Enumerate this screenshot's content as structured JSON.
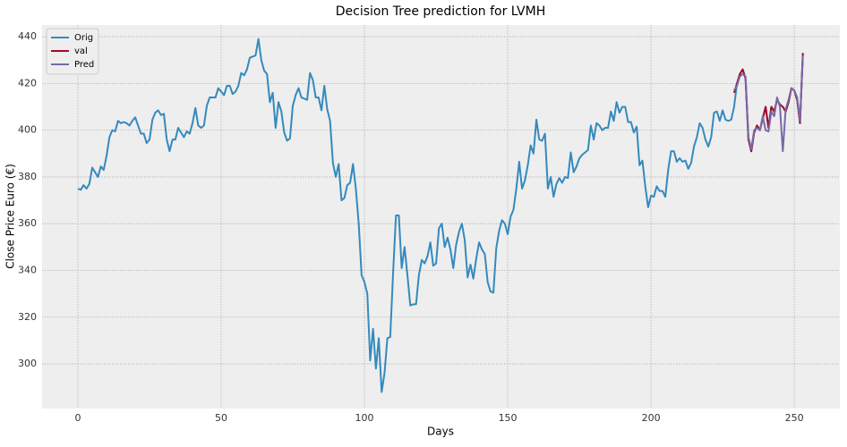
{
  "chart_data": {
    "type": "line",
    "title": "Decision Tree prediction for LVMH",
    "xlabel": "Days",
    "ylabel": "Close Price Euro (€)",
    "xlim": [
      -12.5,
      265.9
    ],
    "ylim": [
      280.9,
      445
    ],
    "xticks": [
      0,
      50,
      100,
      150,
      200,
      250
    ],
    "yticks": [
      300,
      320,
      340,
      360,
      380,
      400,
      420,
      440
    ],
    "grid": true,
    "legend": "upper left",
    "series": [
      {
        "name": "Orig",
        "color": "#348abd",
        "x": [
          0,
          1,
          2,
          3,
          4,
          5,
          6,
          7,
          8,
          9,
          10,
          11,
          12,
          13,
          14,
          15,
          16,
          17,
          18,
          19,
          20,
          21,
          22,
          23,
          24,
          25,
          26,
          27,
          28,
          29,
          30,
          31,
          32,
          33,
          34,
          35,
          36,
          37,
          38,
          39,
          40,
          41,
          42,
          43,
          44,
          45,
          46,
          47,
          48,
          49,
          50,
          51,
          52,
          53,
          54,
          55,
          56,
          57,
          58,
          59,
          60,
          61,
          62,
          63,
          64,
          65,
          66,
          67,
          68,
          69,
          70,
          71,
          72,
          73,
          74,
          75,
          76,
          77,
          78,
          79,
          80,
          81,
          82,
          83,
          84,
          85,
          86,
          87,
          88,
          89,
          90,
          91,
          92,
          93,
          94,
          95,
          96,
          97,
          98,
          99,
          100,
          101,
          102,
          103,
          104,
          105,
          106,
          107,
          108,
          109,
          110,
          111,
          112,
          113,
          114,
          115,
          116,
          117,
          118,
          119,
          120,
          121,
          122,
          123,
          124,
          125,
          126,
          127,
          128,
          129,
          130,
          131,
          132,
          133,
          134,
          135,
          136,
          137,
          138,
          139,
          140,
          141,
          142,
          143,
          144,
          145,
          146,
          147,
          148,
          149,
          150,
          151,
          152,
          153,
          154,
          155,
          156,
          157,
          158,
          159,
          160,
          161,
          162,
          163,
          164,
          165,
          166,
          167,
          168,
          169,
          170,
          171,
          172,
          173,
          174,
          175,
          176,
          177,
          178,
          179,
          180,
          181,
          182,
          183,
          184,
          185,
          186,
          187,
          188,
          189,
          190,
          191,
          192,
          193,
          194,
          195,
          196,
          197,
          198,
          199,
          200,
          201,
          202,
          203,
          204,
          205,
          206,
          207,
          208,
          209,
          210,
          211,
          212,
          213,
          214,
          215,
          216,
          217,
          218,
          219,
          220,
          221,
          222,
          223,
          224,
          225,
          226,
          227,
          228,
          229,
          230,
          231,
          232,
          233,
          234,
          235,
          236,
          237,
          238,
          239,
          240,
          241,
          242,
          243,
          244,
          245,
          246,
          247,
          248,
          249,
          250,
          251,
          252,
          253
        ],
        "values": [
          375,
          374.5,
          376.5,
          375,
          377,
          384,
          382,
          380,
          384.5,
          383,
          389,
          397,
          400,
          399.5,
          404,
          403,
          403.5,
          403,
          402,
          404,
          405.5,
          402,
          398.5,
          398.5,
          394.5,
          396,
          404.5,
          407.5,
          408.5,
          406.5,
          407,
          396,
          391,
          396,
          396,
          401,
          399,
          397,
          399.5,
          398.5,
          403,
          409.5,
          402,
          401,
          402,
          410.5,
          414,
          414,
          414,
          418,
          416.5,
          415,
          419,
          419,
          415.5,
          416.5,
          419,
          424.5,
          423.5,
          426,
          431,
          431.5,
          432,
          439,
          430,
          425.5,
          424,
          412,
          416,
          401,
          412,
          408,
          399,
          395.5,
          396.5,
          410.5,
          415,
          418,
          414,
          413.5,
          413,
          424.5,
          421.5,
          414,
          414,
          408.5,
          419,
          409,
          404,
          386,
          380,
          385.5,
          370,
          371,
          376.5,
          377.5,
          385.5,
          375,
          360,
          338,
          335,
          330,
          301.5,
          315,
          298,
          311,
          288,
          296,
          311,
          311.5,
          339,
          363.5,
          363.5,
          341,
          350,
          338,
          325,
          325.5,
          325.5,
          338,
          344.5,
          343,
          346,
          352,
          342,
          343,
          358,
          360,
          350,
          354,
          349,
          341,
          351,
          356.5,
          360,
          353,
          337,
          342.5,
          336.5,
          345,
          352,
          349,
          347,
          335,
          331,
          330.5,
          349.5,
          357,
          361.5,
          360,
          355.5,
          363,
          366,
          375,
          386.5,
          375,
          378.5,
          385,
          393.5,
          390,
          404.5,
          396,
          395.5,
          398.5,
          375,
          380,
          371.5,
          377,
          379.5,
          377.5,
          380,
          379.5,
          390.5,
          382,
          384.5,
          388,
          389.5,
          390.5,
          391.5,
          402,
          396,
          403,
          402,
          400,
          401,
          401,
          408,
          404,
          412,
          407.5,
          410,
          410,
          403.5,
          403.5,
          399,
          401.5,
          385,
          387,
          376,
          367,
          372,
          371.5,
          376,
          374,
          374,
          371.5,
          383,
          391,
          391,
          386.5,
          388,
          386.5,
          387,
          383.5,
          386,
          393,
          397,
          403,
          401,
          396,
          393,
          397,
          407.5,
          408,
          404,
          408.5,
          404.5,
          404,
          404.5,
          410,
          420,
          424,
          426,
          422,
          396,
          391,
          399,
          402,
          400,
          405,
          410,
          401,
          410,
          408,
          413,
          411,
          410,
          408,
          412,
          418,
          417,
          413,
          403,
          433
        ]
      },
      {
        "name": "val",
        "color": "#a60628",
        "x": [
          229,
          230,
          231,
          232,
          233,
          234,
          235,
          236,
          237,
          238,
          239,
          240,
          241,
          242,
          243,
          244,
          245,
          246,
          247,
          248,
          249,
          250,
          251,
          252,
          253
        ],
        "values": [
          416,
          420,
          424,
          426,
          422,
          396,
          391,
          399,
          402,
          400,
          405,
          410,
          401,
          410,
          408,
          413,
          411,
          410,
          408,
          412,
          418,
          417,
          413,
          403,
          433
        ]
      },
      {
        "name": "Pred",
        "color": "#7a68a6",
        "x": [
          229,
          230,
          231,
          232,
          233,
          234,
          235,
          236,
          237,
          238,
          239,
          240,
          241,
          242,
          243,
          244,
          245,
          246,
          247,
          248,
          249,
          250,
          251,
          252,
          253
        ],
        "values": [
          417,
          419,
          423,
          424,
          423,
          397,
          392,
          400,
          401,
          400,
          406,
          400,
          399.5,
          408,
          406,
          414,
          410,
          391,
          409,
          413,
          418,
          417,
          414,
          404,
          432
        ]
      }
    ]
  }
}
